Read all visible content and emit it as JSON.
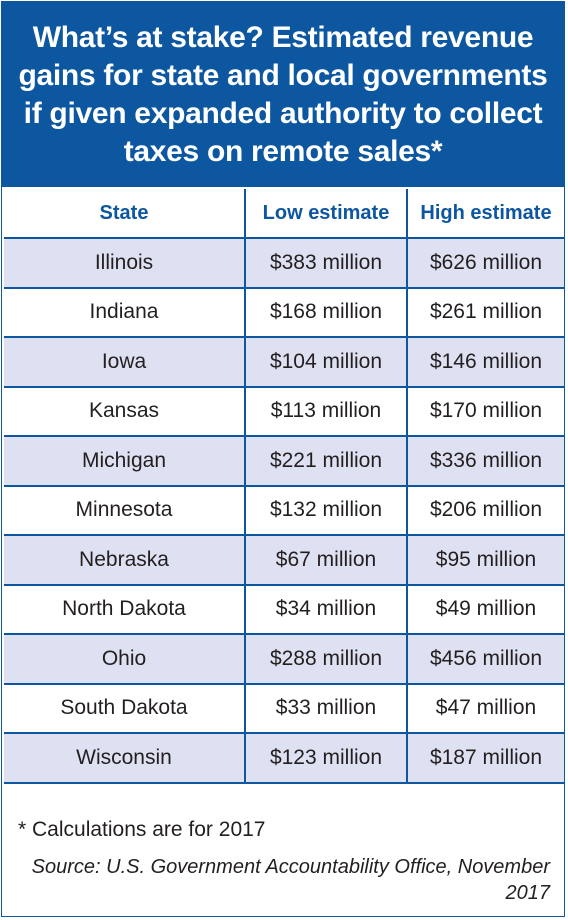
{
  "chart_data": {
    "type": "table",
    "title": "What’s at stake? Estimated revenue gains for state and local governments if given expanded authority to collect taxes on remote sales*",
    "columns": [
      "State",
      "Low estimate",
      "High estimate"
    ],
    "rows": [
      [
        "Illinois",
        "$383 million",
        "$626 million"
      ],
      [
        "Indiana",
        "$168 million",
        "$261 million"
      ],
      [
        "Iowa",
        "$104 million",
        "$146 million"
      ],
      [
        "Kansas",
        "$113 million",
        "$170 million"
      ],
      [
        "Michigan",
        "$221 million",
        "$336 million"
      ],
      [
        "Minnesota",
        "$132 million",
        "$206 million"
      ],
      [
        "Nebraska",
        "$67 million",
        "$95 million"
      ],
      [
        "North Dakota",
        "$34 million",
        "$49 million"
      ],
      [
        "Ohio",
        "$288 million",
        "$456 million"
      ],
      [
        "South Dakota",
        "$33 million",
        "$47 million"
      ],
      [
        "Wisconsin",
        "$123 million",
        "$187 million"
      ]
    ],
    "footnote": "* Calculations are for 2017",
    "source": "Source: U.S. Government Accountability Office, November 2017"
  },
  "colors": {
    "header_bg": "#0d57a1",
    "shaded_row": "#dee1f1",
    "header_text": "#0d57a1"
  }
}
